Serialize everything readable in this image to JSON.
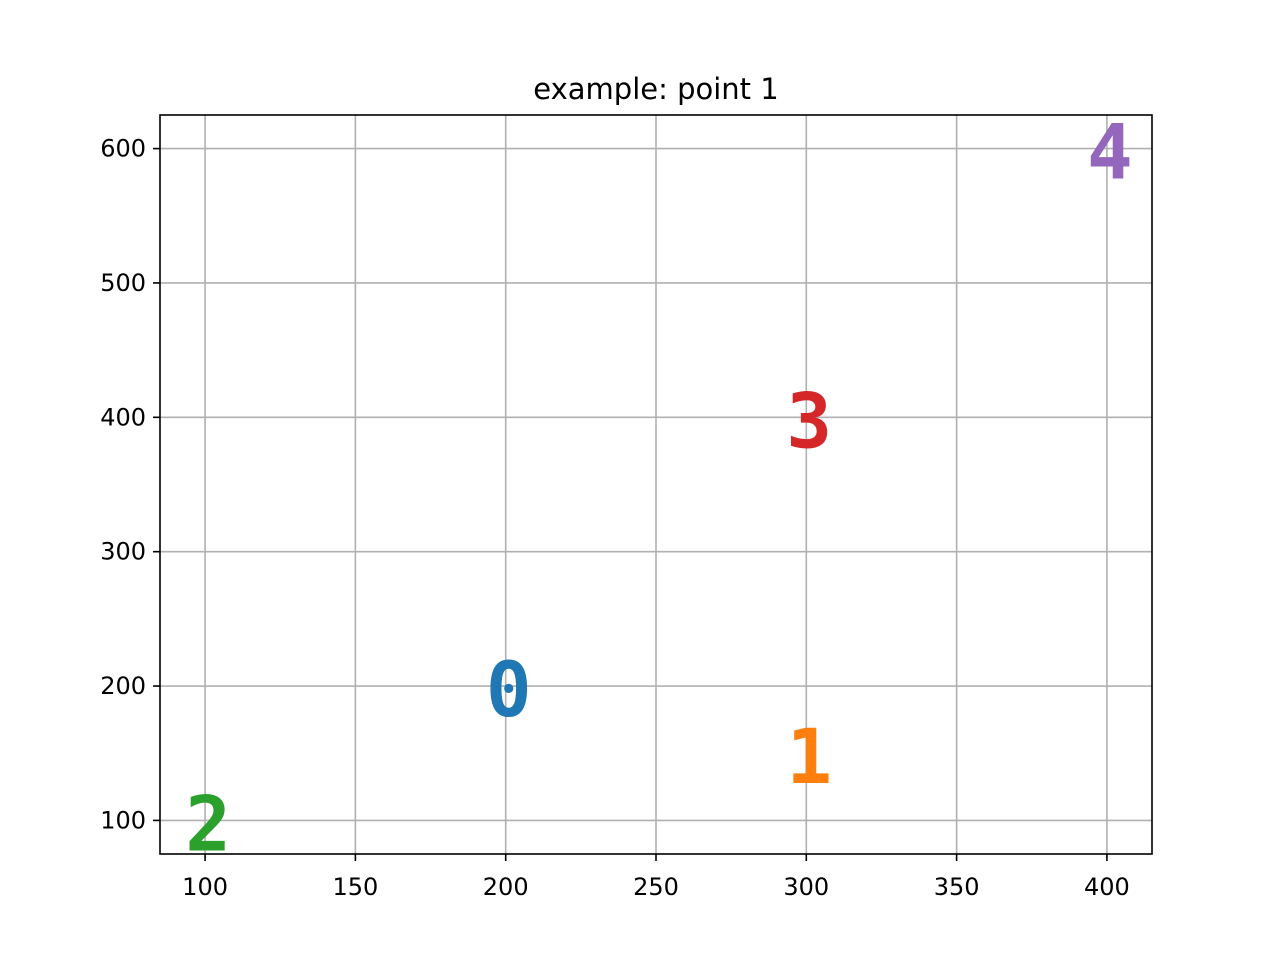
{
  "chart_data": {
    "type": "scatter",
    "title": "example: point 1",
    "xlabel": "",
    "ylabel": "",
    "xlim": [
      85,
      415
    ],
    "ylim": [
      75,
      625
    ],
    "x_ticks": [
      100,
      150,
      200,
      250,
      300,
      350,
      400
    ],
    "y_ticks": [
      100,
      200,
      300,
      400,
      500,
      600
    ],
    "grid": true,
    "marker_style": "text-label",
    "points": [
      {
        "label": "0",
        "x": 200,
        "y": 200,
        "color": "#1f77b4"
      },
      {
        "label": "1",
        "x": 300,
        "y": 150,
        "color": "#ff7f0e"
      },
      {
        "label": "2",
        "x": 100,
        "y": 100,
        "color": "#2ca02c"
      },
      {
        "label": "3",
        "x": 300,
        "y": 400,
        "color": "#d62728"
      },
      {
        "label": "4",
        "x": 400,
        "y": 600,
        "color": "#9467bd"
      }
    ]
  }
}
